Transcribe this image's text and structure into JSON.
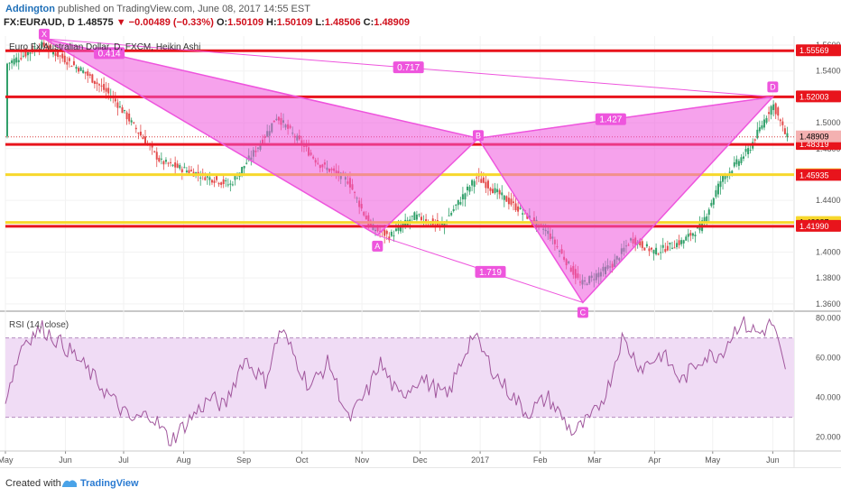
{
  "header": {
    "author": "Addington",
    "published": " published on TradingView.com, June 08, 2017 14:55 EST",
    "symbol": "FX:EURAUD, D",
    "last": "1.48575",
    "change": "▼ −0.00489 (−0.33%)",
    "o_label": "O:",
    "o_value": "1.50109",
    "h_label": "H:",
    "h_value": "1.50109",
    "l_label": "L:",
    "l_value": "1.48506",
    "c_label": "C:",
    "c_value": "1.48909"
  },
  "chart_title": "Euro Fx/Australian Dollar, D, FXCM, Heikin Ashi",
  "rsi_title": "RSI (14, close)",
  "footer": {
    "created_with": "Created with",
    "brand": "TradingView"
  },
  "colors": {
    "up": "#31a06a",
    "down": "#e34b4b",
    "pattern": "#ee55dd",
    "pattern_fill": "#ee55dd",
    "red_line": "#e8141c",
    "yellow_line": "#f7d82c",
    "rsi_line": "#a0569c",
    "rsi_band": "#f0dcf5"
  },
  "chart_data": [
    {
      "type": "candlestick",
      "title": "Euro Fx/Australian Dollar, D, FXCM, Heikin Ashi",
      "x_range": [
        "2017-05-01",
        "2017-06-08"
      ],
      "x_ticks": [
        "May",
        "Jun",
        "Jul",
        "Aug",
        "Sep",
        "Oct",
        "Nov",
        "Dec",
        "2017",
        "Feb",
        "Mar",
        "Apr",
        "May",
        "Jun"
      ],
      "y_ticks": [
        "1.36000",
        "1.38000",
        "1.40000",
        "1.42000",
        "1.44000",
        "1.46000",
        "1.48000",
        "1.50000",
        "1.52000",
        "1.54000",
        "1.56000"
      ],
      "ylim": [
        1.355,
        1.567
      ],
      "key_path": [
        {
          "t": "2016-05-01",
          "p": 1.545
        },
        {
          "t": "2016-05-20",
          "p": 1.56
        },
        {
          "t": "2016-06-10",
          "p": 1.54
        },
        {
          "t": "2016-06-25",
          "p": 1.52
        },
        {
          "t": "2016-07-20",
          "p": 1.47
        },
        {
          "t": "2016-08-05",
          "p": 1.462
        },
        {
          "t": "2016-08-25",
          "p": 1.452
        },
        {
          "t": "2016-09-10",
          "p": 1.485
        },
        {
          "t": "2016-09-18",
          "p": 1.505
        },
        {
          "t": "2016-10-10",
          "p": 1.468
        },
        {
          "t": "2016-10-25",
          "p": 1.455
        },
        {
          "t": "2016-11-05",
          "p": 1.42
        },
        {
          "t": "2016-11-15",
          "p": 1.412
        },
        {
          "t": "2016-11-28",
          "p": 1.428
        },
        {
          "t": "2016-12-12",
          "p": 1.42
        },
        {
          "t": "2016-12-30",
          "p": 1.458
        },
        {
          "t": "2017-01-15",
          "p": 1.44
        },
        {
          "t": "2017-02-05",
          "p": 1.415
        },
        {
          "t": "2017-02-22",
          "p": 1.375
        },
        {
          "t": "2017-03-10",
          "p": 1.39
        },
        {
          "t": "2017-03-20",
          "p": 1.41
        },
        {
          "t": "2017-04-01",
          "p": 1.4
        },
        {
          "t": "2017-04-15",
          "p": 1.408
        },
        {
          "t": "2017-04-25",
          "p": 1.42
        },
        {
          "t": "2017-05-05",
          "p": 1.455
        },
        {
          "t": "2017-05-20",
          "p": 1.48
        },
        {
          "t": "2017-06-01",
          "p": 1.515
        },
        {
          "t": "2017-06-08",
          "p": 1.489
        }
      ],
      "price_lines": [
        {
          "value": 1.55569,
          "color": "red",
          "label": "1.55569"
        },
        {
          "value": 1.52003,
          "color": "red",
          "label": "1.52003"
        },
        {
          "value": 1.48319,
          "color": "red",
          "label": "1.48319"
        },
        {
          "value": 1.45986,
          "color": "yellow",
          "label": "1.45986"
        },
        {
          "value": 1.42287,
          "color": "yellow",
          "label": "1.42287"
        },
        {
          "value": 1.4199,
          "color": "red",
          "label": "1.41990"
        }
      ],
      "price_badges": [
        {
          "value": 1.48909,
          "label": "1.48909",
          "style": "current"
        },
        {
          "value": 1.45935,
          "label": "1.45935",
          "style": "red"
        }
      ],
      "harmonic_pattern": {
        "points": [
          {
            "name": "X",
            "t": "2016-05-21",
            "p": 1.565
          },
          {
            "name": "A",
            "t": "2016-11-09",
            "p": 1.413
          },
          {
            "name": "B",
            "t": "2016-12-31",
            "p": 1.488
          },
          {
            "name": "C",
            "t": "2017-02-23",
            "p": 1.361
          },
          {
            "name": "D",
            "t": "2017-06-01",
            "p": 1.52
          }
        ],
        "ratios": [
          {
            "label": "0.414",
            "between": "XB"
          },
          {
            "label": "0.717",
            "between": "XD"
          },
          {
            "label": "1.427",
            "between": "BD"
          },
          {
            "label": "1.719",
            "between": "AC"
          }
        ]
      }
    },
    {
      "type": "line",
      "title": "RSI (14, close)",
      "y_ticks": [
        "20.0000",
        "40.0000",
        "60.0000",
        "80.0000"
      ],
      "ylim": [
        13,
        83
      ],
      "bands": [
        30,
        70
      ],
      "key_path": [
        {
          "t": "2016-05-01",
          "v": 40
        },
        {
          "t": "2016-05-10",
          "v": 68
        },
        {
          "t": "2016-05-20",
          "v": 75
        },
        {
          "t": "2016-06-05",
          "v": 62
        },
        {
          "t": "2016-06-20",
          "v": 45
        },
        {
          "t": "2016-07-05",
          "v": 28
        },
        {
          "t": "2016-07-15",
          "v": 32
        },
        {
          "t": "2016-07-25",
          "v": 18
        },
        {
          "t": "2016-08-05",
          "v": 30
        },
        {
          "t": "2016-08-15",
          "v": 40
        },
        {
          "t": "2016-08-22",
          "v": 35
        },
        {
          "t": "2016-09-01",
          "v": 60
        },
        {
          "t": "2016-09-12",
          "v": 48
        },
        {
          "t": "2016-09-20",
          "v": 75
        },
        {
          "t": "2016-10-05",
          "v": 45
        },
        {
          "t": "2016-10-15",
          "v": 58
        },
        {
          "t": "2016-10-25",
          "v": 28
        },
        {
          "t": "2016-11-05",
          "v": 45
        },
        {
          "t": "2016-11-10",
          "v": 58
        },
        {
          "t": "2016-11-20",
          "v": 40
        },
        {
          "t": "2016-12-01",
          "v": 50
        },
        {
          "t": "2016-12-15",
          "v": 40
        },
        {
          "t": "2016-12-28",
          "v": 72
        },
        {
          "t": "2017-01-10",
          "v": 50
        },
        {
          "t": "2017-01-25",
          "v": 32
        },
        {
          "t": "2017-02-05",
          "v": 40
        },
        {
          "t": "2017-02-18",
          "v": 22
        },
        {
          "t": "2017-02-28",
          "v": 30
        },
        {
          "t": "2017-03-08",
          "v": 45
        },
        {
          "t": "2017-03-15",
          "v": 70
        },
        {
          "t": "2017-03-25",
          "v": 55
        },
        {
          "t": "2017-04-05",
          "v": 62
        },
        {
          "t": "2017-04-15",
          "v": 48
        },
        {
          "t": "2017-04-25",
          "v": 60
        },
        {
          "t": "2017-05-05",
          "v": 62
        },
        {
          "t": "2017-05-15",
          "v": 78
        },
        {
          "t": "2017-05-25",
          "v": 72
        },
        {
          "t": "2017-06-01",
          "v": 78
        },
        {
          "t": "2017-06-08",
          "v": 50
        }
      ]
    }
  ]
}
